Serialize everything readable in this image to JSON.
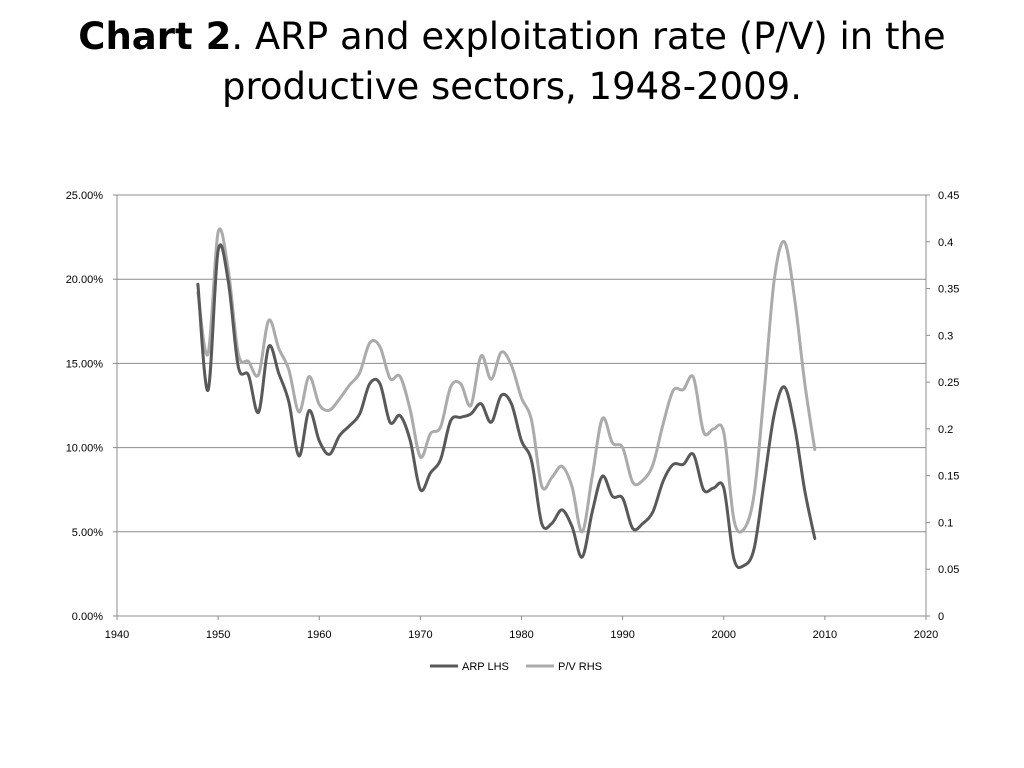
{
  "title": {
    "bold": "Chart 2",
    "rest": ". ARP and exploitation rate (P/V) in the productive sectors, 1948-2009."
  },
  "chart_data": {
    "type": "line",
    "title": "Chart 2. ARP and exploitation rate (P/V) in the productive sectors, 1948-2009.",
    "xlabel": "",
    "ylabel_left": "",
    "ylabel_right": "",
    "xlim": [
      1940,
      2020
    ],
    "x_ticks": [
      "1940",
      "1950",
      "1960",
      "1970",
      "1980",
      "1990",
      "2000",
      "2010",
      "2020"
    ],
    "ylim_left": [
      0,
      0.25
    ],
    "y_ticks_left": [
      "0.00%",
      "5.00%",
      "10.00%",
      "15.00%",
      "20.00%",
      "25.00%"
    ],
    "ylim_right": [
      0,
      0.45
    ],
    "y_ticks_right": [
      "0",
      "0.05",
      "0.1",
      "0.15",
      "0.2",
      "0.25",
      "0.3",
      "0.35",
      "0.4",
      "0.45"
    ],
    "grid": "horizontal",
    "legend_position": "bottom",
    "series": [
      {
        "name": "ARP LHS",
        "axis": "left",
        "color": "#595959",
        "x": [
          1948,
          1949,
          1950,
          1951,
          1952,
          1953,
          1954,
          1955,
          1956,
          1957,
          1958,
          1959,
          1960,
          1961,
          1962,
          1963,
          1964,
          1965,
          1966,
          1967,
          1968,
          1969,
          1970,
          1971,
          1972,
          1973,
          1974,
          1975,
          1976,
          1977,
          1978,
          1979,
          1980,
          1981,
          1982,
          1983,
          1984,
          1985,
          1986,
          1987,
          1988,
          1989,
          1990,
          1991,
          1992,
          1993,
          1994,
          1995,
          1996,
          1997,
          1998,
          1999,
          2000,
          2001,
          2002,
          2003,
          2004,
          2005,
          2006,
          2007,
          2008,
          2009
        ],
        "values": [
          0.197,
          0.134,
          0.217,
          0.199,
          0.148,
          0.143,
          0.121,
          0.16,
          0.144,
          0.127,
          0.095,
          0.122,
          0.104,
          0.096,
          0.107,
          0.113,
          0.12,
          0.138,
          0.138,
          0.115,
          0.119,
          0.104,
          0.075,
          0.085,
          0.093,
          0.116,
          0.118,
          0.12,
          0.126,
          0.115,
          0.131,
          0.126,
          0.104,
          0.092,
          0.055,
          0.055,
          0.063,
          0.053,
          0.035,
          0.062,
          0.083,
          0.071,
          0.07,
          0.052,
          0.055,
          0.062,
          0.08,
          0.09,
          0.09,
          0.096,
          0.075,
          0.076,
          0.076,
          0.034,
          0.03,
          0.04,
          0.08,
          0.12,
          0.136,
          0.113,
          0.075,
          0.046
        ]
      },
      {
        "name": "P/V RHS",
        "axis": "right",
        "color": "#ababab",
        "x": [
          1948,
          1949,
          1950,
          1951,
          1952,
          1953,
          1954,
          1955,
          1956,
          1957,
          1958,
          1959,
          1960,
          1961,
          1962,
          1963,
          1964,
          1965,
          1966,
          1967,
          1968,
          1969,
          1970,
          1971,
          1972,
          1973,
          1974,
          1975,
          1976,
          1977,
          1978,
          1979,
          1980,
          1981,
          1982,
          1983,
          1984,
          1985,
          1986,
          1987,
          1988,
          1989,
          1990,
          1991,
          1992,
          1993,
          1994,
          1995,
          1996,
          1997,
          1998,
          1999,
          2000,
          2001,
          2002,
          2003,
          2004,
          2005,
          2006,
          2007,
          2008,
          2009
        ],
        "values": [
          0.346,
          0.28,
          0.41,
          0.37,
          0.28,
          0.272,
          0.258,
          0.316,
          0.286,
          0.263,
          0.218,
          0.256,
          0.226,
          0.22,
          0.232,
          0.247,
          0.26,
          0.292,
          0.288,
          0.254,
          0.256,
          0.22,
          0.17,
          0.195,
          0.202,
          0.245,
          0.248,
          0.225,
          0.278,
          0.253,
          0.282,
          0.268,
          0.233,
          0.209,
          0.139,
          0.148,
          0.16,
          0.138,
          0.09,
          0.15,
          0.211,
          0.185,
          0.18,
          0.143,
          0.145,
          0.162,
          0.205,
          0.241,
          0.242,
          0.255,
          0.197,
          0.2,
          0.196,
          0.103,
          0.093,
          0.13,
          0.24,
          0.36,
          0.4,
          0.34,
          0.25,
          0.178
        ]
      }
    ]
  }
}
